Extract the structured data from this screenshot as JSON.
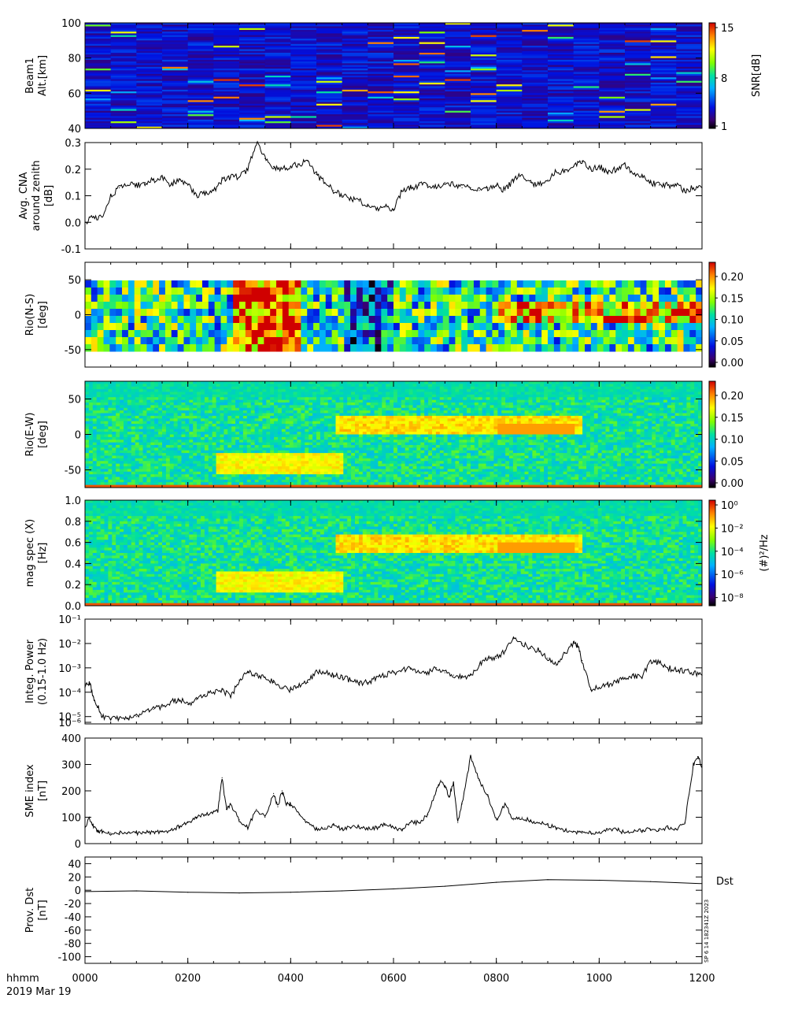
{
  "footer": {
    "time_label": "hhmm",
    "date_label": "2019 Mar 19"
  },
  "side_stamp": "SP  6 14 182341Z 2023",
  "chart_data": [
    {
      "type": "heatmap",
      "ylabel_lines": [
        "Beam1",
        "Alt.[km]"
      ],
      "ylim": [
        40,
        100
      ],
      "yticks": [
        "100",
        "80",
        "60",
        "40"
      ],
      "colorbar": {
        "label": "SNR[dB]",
        "ticks": [
          "15",
          "8",
          "1"
        ],
        "range": [
          1,
          15
        ]
      }
    },
    {
      "type": "line",
      "ylabel_lines": [
        "Avg. CNA",
        "around zenith",
        "[dB]"
      ],
      "ylim": [
        -0.1,
        0.3
      ],
      "yticks": [
        "0.3",
        "0.2",
        "0.1",
        "0.0",
        "-0.1"
      ],
      "x": [
        0,
        10,
        20,
        30,
        40,
        50,
        60,
        70,
        80,
        90,
        100,
        110,
        120,
        130,
        140,
        150,
        160,
        170,
        180,
        190,
        200,
        210,
        220,
        230,
        240,
        250,
        260,
        270,
        280,
        290,
        300,
        310,
        320,
        330,
        340,
        350,
        360,
        370,
        380,
        390,
        400,
        410,
        420,
        430,
        440,
        450,
        460,
        470,
        480,
        490,
        500,
        510,
        520,
        530,
        540,
        550,
        560,
        570,
        580,
        590,
        600,
        610,
        620,
        630,
        640,
        650,
        660,
        670,
        680,
        690,
        700,
        710,
        720
      ],
      "y": [
        0.0,
        0.02,
        0.02,
        0.1,
        0.13,
        0.14,
        0.14,
        0.15,
        0.16,
        0.17,
        0.14,
        0.16,
        0.14,
        0.1,
        0.11,
        0.12,
        0.16,
        0.17,
        0.17,
        0.2,
        0.3,
        0.24,
        0.21,
        0.2,
        0.21,
        0.22,
        0.23,
        0.18,
        0.15,
        0.12,
        0.1,
        0.09,
        0.08,
        0.06,
        0.05,
        0.06,
        0.05,
        0.12,
        0.13,
        0.14,
        0.14,
        0.13,
        0.15,
        0.14,
        0.13,
        0.13,
        0.12,
        0.13,
        0.14,
        0.12,
        0.16,
        0.18,
        0.15,
        0.14,
        0.16,
        0.19,
        0.19,
        0.21,
        0.23,
        0.2,
        0.21,
        0.19,
        0.2,
        0.22,
        0.18,
        0.17,
        0.15,
        0.14,
        0.14,
        0.14,
        0.12,
        0.13,
        0.13
      ]
    },
    {
      "type": "heatmap",
      "ylabel_lines": [
        "Rio(N-S)",
        "[deg]"
      ],
      "ylim": [
        -75,
        75
      ],
      "yticks": [
        "50",
        "0",
        "-50"
      ],
      "colorbar": {
        "label": "",
        "ticks": [
          "0.20",
          "0.15",
          "0.10",
          "0.05",
          "0.00"
        ],
        "range": [
          0,
          0.22
        ]
      }
    },
    {
      "type": "heatmap",
      "ylabel_lines": [
        "Rio(E-W)",
        "[deg]"
      ],
      "ylim": [
        -75,
        75
      ],
      "yticks": [
        "50",
        "0",
        "-50"
      ],
      "colorbar": {
        "label": "",
        "ticks": [
          "0.20",
          "0.15",
          "0.10",
          "0.05",
          "0.00"
        ],
        "range": [
          0,
          0.22
        ]
      }
    },
    {
      "type": "heatmap",
      "ylabel_lines": [
        "mag spec (X)",
        "[Hz]"
      ],
      "ylim": [
        0,
        1.0
      ],
      "yticks": [
        "1.0",
        "0.8",
        "0.6",
        "0.4",
        "0.2",
        "0.0"
      ],
      "colorbar": {
        "label": "(#)²/Hz",
        "ticks": [
          "10⁰",
          "10⁻²",
          "10⁻⁴",
          "10⁻⁶",
          "10⁻⁸"
        ]
      }
    },
    {
      "type": "line",
      "ylabel_lines": [
        "Integ. Power",
        "(0.15-1.0 Hz)"
      ],
      "yscale": "log",
      "ylim_log10": [
        -5.3,
        -1
      ],
      "yticks": [
        "10⁻¹",
        "10⁻²",
        "10⁻³",
        "10⁻⁴",
        "10⁻⁵",
        "10⁻⁶"
      ],
      "x": [
        0,
        5,
        10,
        15,
        20,
        30,
        40,
        50,
        60,
        70,
        80,
        90,
        100,
        110,
        120,
        130,
        140,
        150,
        160,
        170,
        180,
        190,
        200,
        210,
        220,
        230,
        240,
        250,
        260,
        270,
        280,
        290,
        300,
        310,
        320,
        330,
        340,
        350,
        360,
        370,
        380,
        390,
        400,
        410,
        420,
        430,
        440,
        450,
        460,
        470,
        480,
        490,
        500,
        510,
        520,
        530,
        540,
        550,
        560,
        570,
        575,
        580,
        590,
        600,
        610,
        620,
        630,
        640,
        650,
        660,
        670,
        680,
        690,
        700,
        710,
        720
      ],
      "log10_y": [
        -3.8,
        -3.6,
        -4.2,
        -4.6,
        -5.0,
        -5.1,
        -5.1,
        -5.1,
        -5.0,
        -4.8,
        -4.7,
        -4.6,
        -4.4,
        -4.3,
        -4.5,
        -4.3,
        -4.1,
        -4.0,
        -3.9,
        -4.2,
        -3.5,
        -3.2,
        -3.3,
        -3.4,
        -3.6,
        -3.8,
        -3.9,
        -3.7,
        -3.6,
        -3.1,
        -3.2,
        -3.3,
        -3.4,
        -3.5,
        -3.6,
        -3.6,
        -3.4,
        -3.3,
        -3.2,
        -3.1,
        -3.0,
        -3.2,
        -3.2,
        -3.0,
        -3.2,
        -3.3,
        -3.4,
        -3.3,
        -2.9,
        -2.6,
        -2.6,
        -2.3,
        -1.8,
        -2.0,
        -2.2,
        -2.3,
        -2.6,
        -2.9,
        -2.4,
        -2.0,
        -2.1,
        -2.7,
        -3.9,
        -3.8,
        -3.7,
        -3.6,
        -3.4,
        -3.3,
        -3.4,
        -2.7,
        -2.8,
        -3.0,
        -3.1,
        -3.1,
        -3.2,
        -3.3
      ]
    },
    {
      "type": "line",
      "ylabel_lines": [
        "SME index",
        "[nT]"
      ],
      "ylim": [
        0,
        400
      ],
      "yticks": [
        "400",
        "300",
        "200",
        "100",
        "0"
      ],
      "x": [
        0,
        5,
        10,
        15,
        20,
        30,
        40,
        50,
        60,
        70,
        80,
        90,
        100,
        110,
        120,
        130,
        140,
        150,
        155,
        160,
        165,
        170,
        180,
        190,
        200,
        210,
        220,
        225,
        230,
        235,
        240,
        250,
        260,
        270,
        280,
        290,
        300,
        310,
        320,
        330,
        340,
        350,
        360,
        370,
        380,
        390,
        400,
        410,
        415,
        420,
        425,
        430,
        435,
        440,
        450,
        460,
        470,
        480,
        490,
        500,
        510,
        520,
        530,
        540,
        550,
        560,
        570,
        580,
        590,
        600,
        610,
        620,
        630,
        640,
        650,
        660,
        670,
        680,
        690,
        700,
        710,
        715,
        720
      ],
      "y": [
        60,
        100,
        65,
        50,
        45,
        40,
        42,
        40,
        40,
        42,
        45,
        45,
        50,
        65,
        80,
        100,
        110,
        120,
        125,
        250,
        130,
        150,
        90,
        60,
        130,
        100,
        190,
        140,
        200,
        150,
        150,
        110,
        80,
        55,
        60,
        70,
        55,
        60,
        65,
        55,
        60,
        75,
        60,
        55,
        80,
        80,
        110,
        200,
        240,
        220,
        180,
        230,
        80,
        150,
        330,
        240,
        180,
        90,
        150,
        90,
        100,
        85,
        80,
        70,
        60,
        50,
        45,
        40,
        40,
        45,
        50,
        55,
        40,
        45,
        50,
        55,
        50,
        60,
        55,
        80,
        300,
        330,
        290
      ]
    },
    {
      "type": "line",
      "ylabel_lines": [
        "Prov. Dst",
        "[nT]"
      ],
      "ylim": [
        -110,
        50
      ],
      "yticks": [
        "40",
        "20",
        "0",
        "-20",
        "-40",
        "-60",
        "-80",
        "-100"
      ],
      "series_label": "Dst",
      "x": [
        0,
        60,
        120,
        180,
        240,
        300,
        360,
        420,
        480,
        540,
        600,
        660,
        720
      ],
      "y": [
        -2,
        -1,
        -3,
        -4,
        -3,
        -1,
        2,
        6,
        12,
        16,
        15,
        13,
        10
      ]
    }
  ],
  "x_axis": {
    "ticks": [
      "0000",
      "0200",
      "0400",
      "0600",
      "0800",
      "1000",
      "1200"
    ],
    "range_minutes": [
      0,
      720
    ]
  }
}
